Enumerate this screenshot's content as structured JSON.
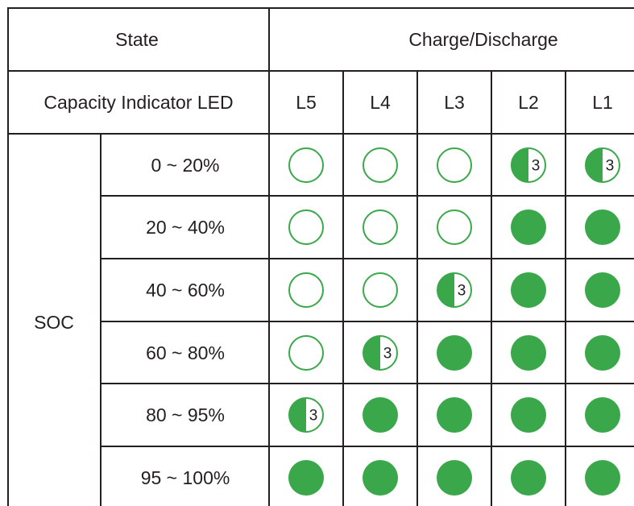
{
  "header": {
    "state": "State",
    "mode": "Charge/Discharge",
    "indicator": "Capacity Indicator LED",
    "leds": [
      "L5",
      "L4",
      "L3",
      "L2",
      "L1"
    ]
  },
  "group": "SOC",
  "led_color": "#3aa84a",
  "rows": [
    {
      "range": "0 ~ 20%",
      "cells": [
        "off",
        "off",
        "off",
        "3",
        "3"
      ]
    },
    {
      "range": "20 ~ 40%",
      "cells": [
        "off",
        "off",
        "off",
        "on",
        "on"
      ]
    },
    {
      "range": "40 ~ 60%",
      "cells": [
        "off",
        "off",
        "3",
        "on",
        "on"
      ]
    },
    {
      "range": "60 ~ 80%",
      "cells": [
        "off",
        "3",
        "on",
        "on",
        "on"
      ]
    },
    {
      "range": "80 ~ 95%",
      "cells": [
        "3",
        "on",
        "on",
        "on",
        "on"
      ]
    },
    {
      "range": "95 ~ 100%",
      "cells": [
        "on",
        "on",
        "on",
        "on",
        "on"
      ]
    }
  ]
}
